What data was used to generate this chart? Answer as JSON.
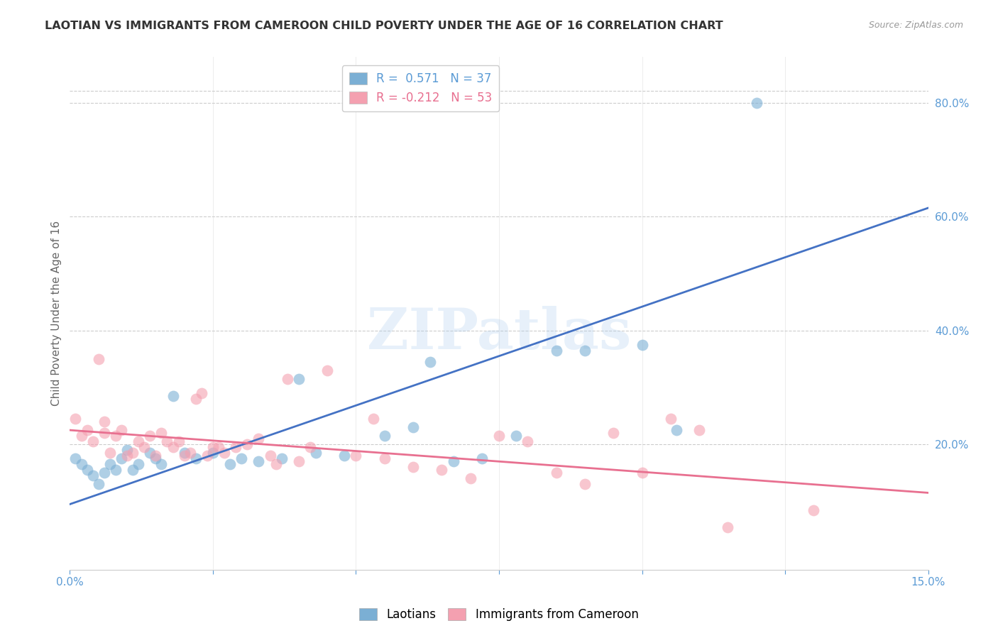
{
  "title": "LAOTIAN VS IMMIGRANTS FROM CAMEROON CHILD POVERTY UNDER THE AGE OF 16 CORRELATION CHART",
  "source": "Source: ZipAtlas.com",
  "ylabel": "Child Poverty Under the Age of 16",
  "xlim": [
    0.0,
    0.15
  ],
  "ylim": [
    -0.02,
    0.88
  ],
  "xticks": [
    0.0,
    0.025,
    0.05,
    0.075,
    0.1,
    0.125,
    0.15
  ],
  "xtick_labels_visible": [
    "0.0%",
    "",
    "",
    "",
    "",
    "",
    "15.0%"
  ],
  "yticks_right": [
    0.2,
    0.4,
    0.6,
    0.8
  ],
  "ytick_labels_right": [
    "20.0%",
    "40.0%",
    "60.0%",
    "80.0%"
  ],
  "blue_color": "#7BAFD4",
  "pink_color": "#F4A0B0",
  "blue_line_color": "#4472C4",
  "pink_line_color": "#E87090",
  "blue_R": "0.571",
  "blue_N": "37",
  "pink_R": "-0.212",
  "pink_N": "53",
  "blue_label": "Laotians",
  "pink_label": "Immigrants from Cameroon",
  "blue_trend_y0": 0.095,
  "blue_trend_y1": 0.615,
  "pink_trend_y0": 0.225,
  "pink_trend_y1": 0.115,
  "blue_dots_x": [
    0.001,
    0.002,
    0.003,
    0.004,
    0.005,
    0.006,
    0.007,
    0.008,
    0.009,
    0.01,
    0.011,
    0.012,
    0.014,
    0.015,
    0.016,
    0.018,
    0.02,
    0.022,
    0.025,
    0.028,
    0.03,
    0.033,
    0.037,
    0.04,
    0.043,
    0.048,
    0.055,
    0.06,
    0.063,
    0.067,
    0.072,
    0.078,
    0.085,
    0.09,
    0.1,
    0.106,
    0.12
  ],
  "blue_dots_y": [
    0.175,
    0.165,
    0.155,
    0.145,
    0.13,
    0.15,
    0.165,
    0.155,
    0.175,
    0.19,
    0.155,
    0.165,
    0.185,
    0.175,
    0.165,
    0.285,
    0.185,
    0.175,
    0.185,
    0.165,
    0.175,
    0.17,
    0.175,
    0.315,
    0.185,
    0.18,
    0.215,
    0.23,
    0.345,
    0.17,
    0.175,
    0.215,
    0.365,
    0.365,
    0.375,
    0.225,
    0.8
  ],
  "pink_dots_x": [
    0.001,
    0.002,
    0.003,
    0.004,
    0.005,
    0.006,
    0.006,
    0.007,
    0.008,
    0.009,
    0.01,
    0.011,
    0.012,
    0.013,
    0.014,
    0.015,
    0.016,
    0.017,
    0.018,
    0.019,
    0.02,
    0.021,
    0.022,
    0.023,
    0.024,
    0.025,
    0.026,
    0.027,
    0.029,
    0.031,
    0.033,
    0.035,
    0.036,
    0.038,
    0.04,
    0.042,
    0.045,
    0.05,
    0.053,
    0.055,
    0.06,
    0.065,
    0.07,
    0.075,
    0.08,
    0.085,
    0.09,
    0.095,
    0.1,
    0.105,
    0.11,
    0.115,
    0.13
  ],
  "pink_dots_y": [
    0.245,
    0.215,
    0.225,
    0.205,
    0.35,
    0.22,
    0.24,
    0.185,
    0.215,
    0.225,
    0.18,
    0.185,
    0.205,
    0.195,
    0.215,
    0.18,
    0.22,
    0.205,
    0.195,
    0.205,
    0.18,
    0.185,
    0.28,
    0.29,
    0.18,
    0.195,
    0.195,
    0.185,
    0.195,
    0.2,
    0.21,
    0.18,
    0.165,
    0.315,
    0.17,
    0.195,
    0.33,
    0.18,
    0.245,
    0.175,
    0.16,
    0.155,
    0.14,
    0.215,
    0.205,
    0.15,
    0.13,
    0.22,
    0.15,
    0.245,
    0.225,
    0.055,
    0.085
  ],
  "watermark_text": "ZIPatlas",
  "background_color": "#FFFFFF",
  "grid_color": "#CCCCCC",
  "title_color": "#333333",
  "axis_tick_color": "#5B9BD5",
  "ylabel_color": "#666666",
  "title_fontsize": 11.5,
  "source_fontsize": 9,
  "tick_label_fontsize": 11,
  "legend_fontsize": 12
}
